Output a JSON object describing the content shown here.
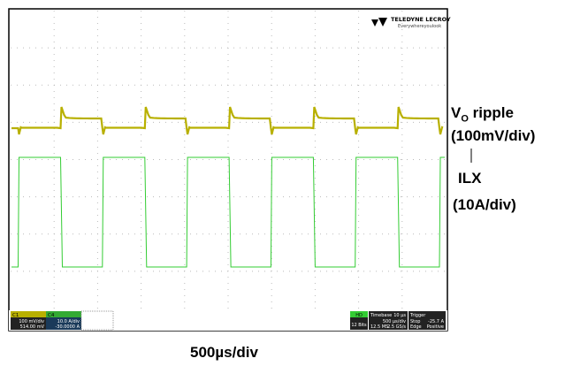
{
  "scope": {
    "brand": "TELEDYNE LECROY",
    "tagline": "Everywhereyoulook",
    "channels": [
      {
        "name": "C1",
        "scale": "100 mV/div",
        "offset": "514.00 mV"
      },
      {
        "name": "C4",
        "scale": "10.0 A/div",
        "offset": "-30.0000 A"
      }
    ],
    "hd": "HD",
    "bits": "12 Bits",
    "timebase_title": "Timebase",
    "timebase_delay": "10 µs",
    "timebase_scale": "500 µs/div",
    "samples": "12.5 MS",
    "rate": "2.5 GS/s",
    "trigger_title": "Trigger",
    "trigger_mode": "Stop",
    "trigger_type": "Edge",
    "trigger_level": "-25.7 A",
    "trigger_slope": "Positive"
  },
  "annotations": {
    "ripple_v": "V",
    "ripple_sub": "O",
    "ripple_rest": " ripple",
    "ripple_scale": "(100mV/div)",
    "ilx": "ILX",
    "ilx_scale": "(10A/div)",
    "time_scale": "500µs/div"
  }
}
